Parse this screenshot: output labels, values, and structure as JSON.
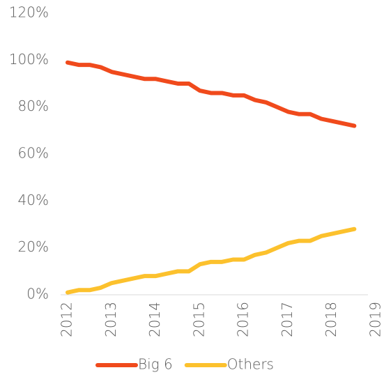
{
  "chart_data": {
    "type": "line",
    "x": [
      2012,
      2012.25,
      2012.5,
      2012.75,
      2013,
      2013.25,
      2013.5,
      2013.75,
      2014,
      2014.25,
      2014.5,
      2014.75,
      2015,
      2015.25,
      2015.5,
      2015.75,
      2016,
      2016.25,
      2016.5,
      2016.75,
      2017,
      2017.25,
      2017.5,
      2017.75,
      2018,
      2018.25,
      2018.5
    ],
    "series": [
      {
        "name": "Big 6",
        "color": "#f04a1c",
        "values": [
          99,
          98,
          98,
          97,
          95,
          94,
          93,
          92,
          92,
          91,
          90,
          90,
          87,
          86,
          86,
          85,
          85,
          83,
          82,
          80,
          78,
          77,
          77,
          75,
          74,
          73,
          72
        ]
      },
      {
        "name": "Others",
        "color": "#fcc12d",
        "values": [
          1,
          2,
          2,
          3,
          5,
          6,
          7,
          8,
          8,
          9,
          10,
          10,
          13,
          14,
          14,
          15,
          15,
          17,
          18,
          20,
          22,
          23,
          23,
          25,
          26,
          27,
          28
        ]
      }
    ],
    "xlim": [
      2012,
      2019
    ],
    "xticks": [
      2012,
      2013,
      2014,
      2015,
      2016,
      2017,
      2018,
      2019
    ],
    "ylim": [
      0,
      120
    ],
    "yticks": [
      {
        "value": 0,
        "label": "0%"
      },
      {
        "value": 20,
        "label": "20%"
      },
      {
        "value": 40,
        "label": "40%"
      },
      {
        "value": 60,
        "label": "60%"
      },
      {
        "value": 80,
        "label": "80%"
      },
      {
        "value": 100,
        "label": "100%"
      },
      {
        "value": 120,
        "label": "120%"
      }
    ],
    "grid": false,
    "legend": "bottom"
  }
}
